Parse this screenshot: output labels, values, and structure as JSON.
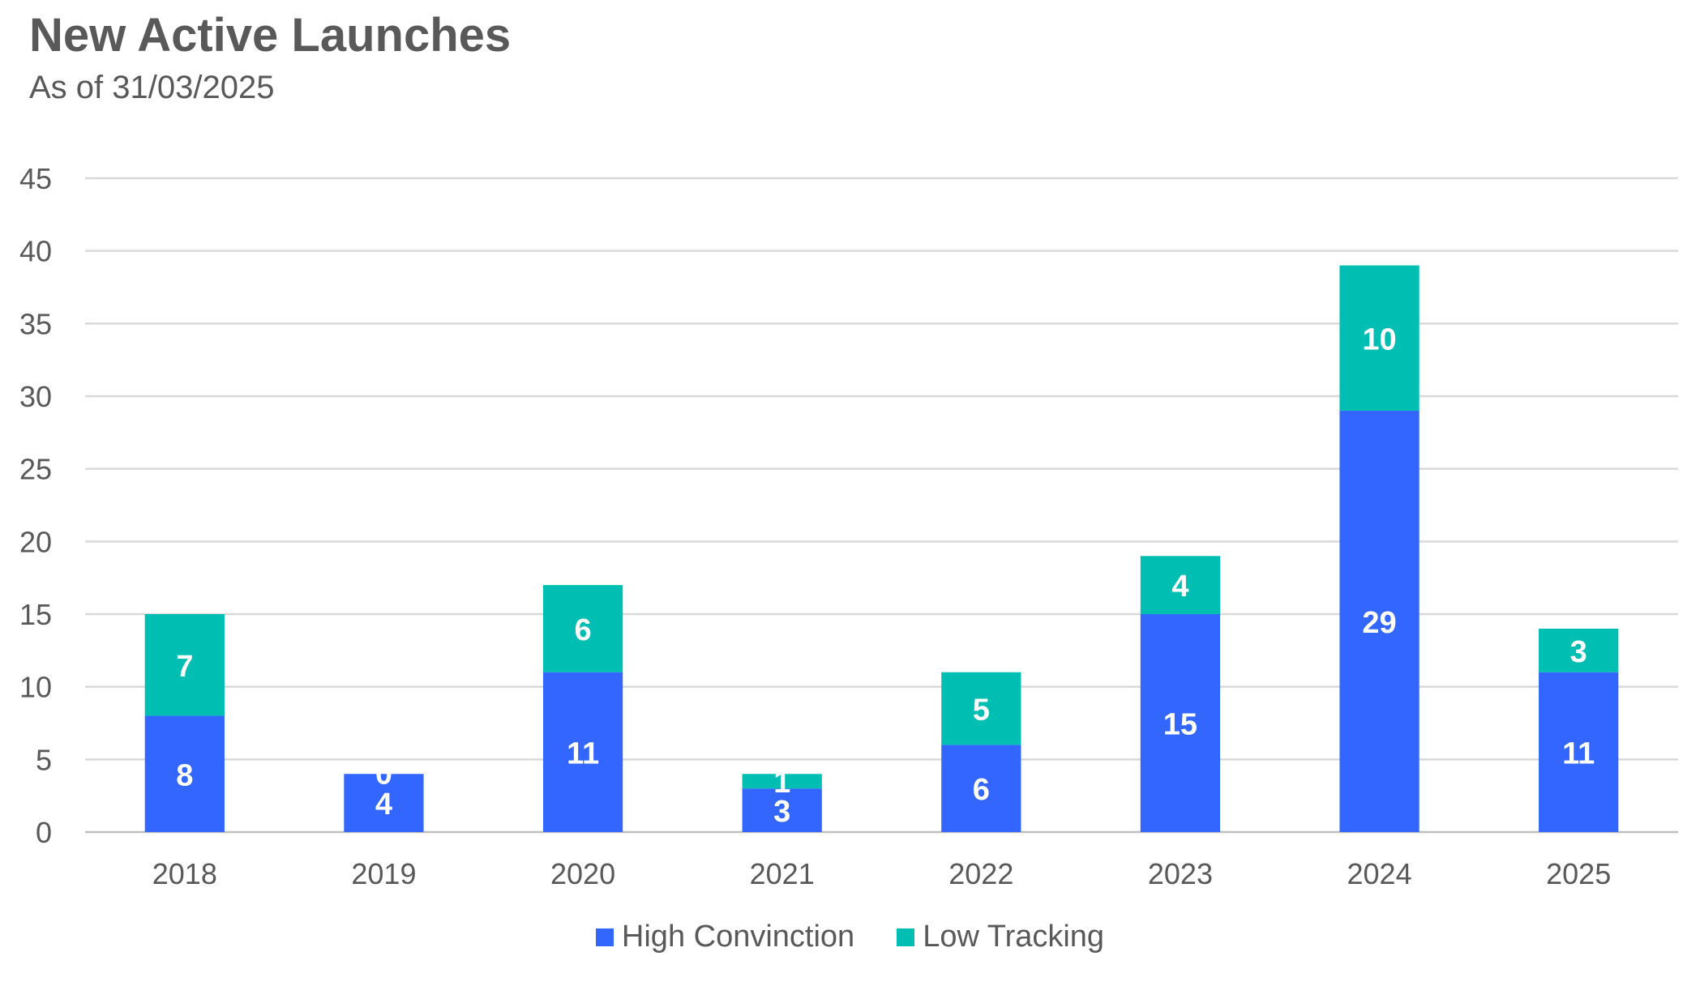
{
  "title": "New Active Launches",
  "subtitle": "As of 31/03/2025",
  "chart_data": {
    "type": "bar",
    "stacked": true,
    "categories": [
      "2018",
      "2019",
      "2020",
      "2021",
      "2022",
      "2023",
      "2024",
      "2025"
    ],
    "series": [
      {
        "name": "High Convinction",
        "color": "#3366ff",
        "values": [
          8,
          4,
          11,
          3,
          6,
          15,
          29,
          11
        ]
      },
      {
        "name": "Low Tracking",
        "color": "#00bfb2",
        "values": [
          7,
          0,
          6,
          1,
          5,
          4,
          10,
          3
        ]
      }
    ],
    "ylim": [
      0,
      45
    ],
    "yticks": [
      0,
      5,
      10,
      15,
      20,
      25,
      30,
      35,
      40,
      45
    ],
    "grid": true,
    "legend_position": "bottom"
  }
}
